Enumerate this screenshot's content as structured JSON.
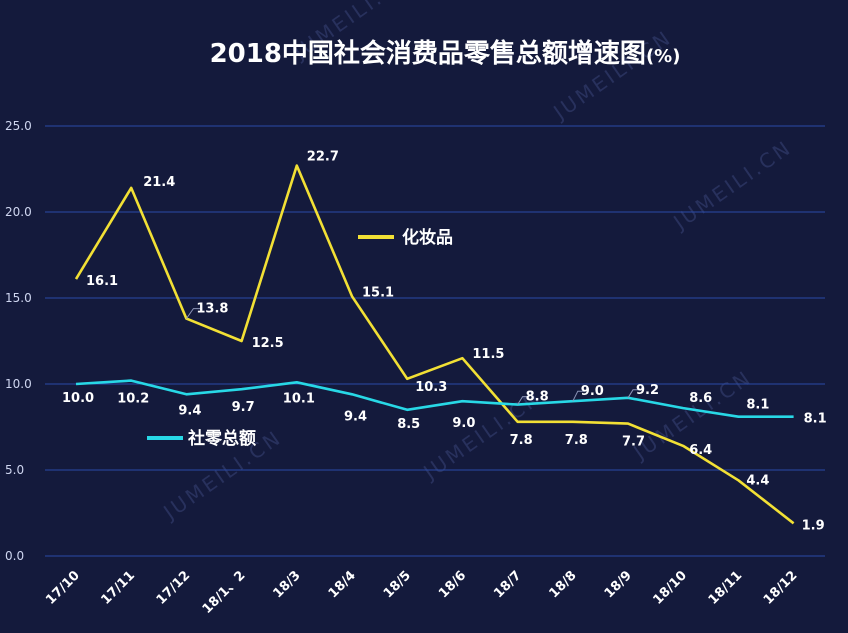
{
  "chart_data": {
    "type": "line",
    "title": "2018中国社会消费品零售总额增速图",
    "title_unit": "(%)",
    "categories": [
      "17/10",
      "17/11",
      "17/12",
      "18/1、2",
      "18/3",
      "18/4",
      "18/5",
      "18/6",
      "18/7",
      "18/8",
      "18/9",
      "18/10",
      "18/11",
      "18/12"
    ],
    "ylim": [
      0,
      25
    ],
    "yticks": [
      "0.0",
      "5.0",
      "10.0",
      "15.0",
      "20.0",
      "25.0"
    ],
    "ytick_values": [
      0,
      5,
      10,
      15,
      20,
      25
    ],
    "grid": true,
    "series": [
      {
        "name": "化妆品",
        "color": "#f2e035",
        "values": [
          16.1,
          21.4,
          13.8,
          12.5,
          22.7,
          15.1,
          10.3,
          11.5,
          7.8,
          7.8,
          7.7,
          6.4,
          4.4,
          1.9
        ],
        "labels": [
          "16.1",
          "21.4",
          "13.8",
          "12.5",
          "22.7",
          "15.1",
          "10.3",
          "11.5",
          "7.8",
          "7.8",
          "7.7",
          "6.4",
          "4.4",
          "1.9"
        ]
      },
      {
        "name": "社零总额",
        "color": "#28d8e6",
        "values": [
          10.0,
          10.2,
          9.4,
          9.7,
          10.1,
          9.4,
          8.5,
          9.0,
          8.8,
          9.0,
          9.2,
          8.6,
          8.1,
          8.1
        ],
        "labels": [
          "10.0",
          "10.2",
          "9.4",
          "9.7",
          "10.1",
          "9.4",
          "8.5",
          "9.0",
          "8.8",
          "9.0",
          "9.2",
          "8.6",
          "8.1",
          "8.1"
        ]
      }
    ],
    "watermark": "JUMEILI.CN"
  }
}
